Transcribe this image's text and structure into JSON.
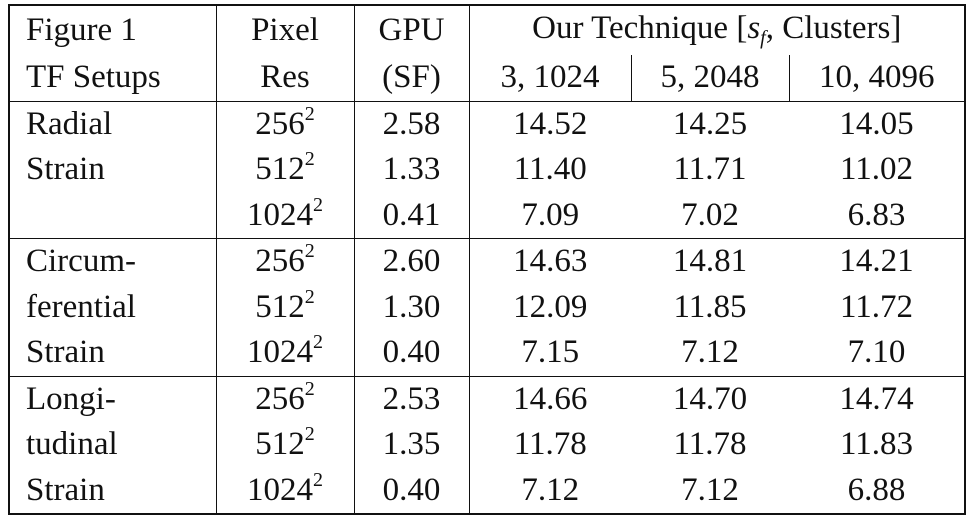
{
  "header": {
    "col1_line1": "Figure 1",
    "col1_line2": "TF Setups",
    "col2_line1": "Pixel",
    "col2_line2": "Res",
    "col3_line1": "GPU",
    "col3_line2": "(SF)",
    "col4_prefix": "Our Technique [",
    "col4_sym": "s",
    "col4_sub": "f",
    "col4_suffix": ", Clusters]",
    "sub1": "3, 1024",
    "sub2": "5, 2048",
    "sub3": "10, 4096"
  },
  "groups": [
    {
      "label_lines": [
        "Radial",
        "Strain",
        ""
      ],
      "rows": [
        {
          "res_base": "256",
          "res_exp": "2",
          "gpu": "2.58",
          "v1": "14.52",
          "v2": "14.25",
          "v3": "14.05"
        },
        {
          "res_base": "512",
          "res_exp": "2",
          "gpu": "1.33",
          "v1": "11.40",
          "v2": "11.71",
          "v3": "11.02"
        },
        {
          "res_base": "1024",
          "res_exp": "2",
          "gpu": "0.41",
          "v1": "7.09",
          "v2": "7.02",
          "v3": "6.83"
        }
      ]
    },
    {
      "label_lines": [
        "Circum-",
        "ferential",
        "Strain"
      ],
      "rows": [
        {
          "res_base": "256",
          "res_exp": "2",
          "gpu": "2.60",
          "v1": "14.63",
          "v2": "14.81",
          "v3": "14.21"
        },
        {
          "res_base": "512",
          "res_exp": "2",
          "gpu": "1.30",
          "v1": "12.09",
          "v2": "11.85",
          "v3": "11.72"
        },
        {
          "res_base": "1024",
          "res_exp": "2",
          "gpu": "0.40",
          "v1": "7.15",
          "v2": "7.12",
          "v3": "7.10"
        }
      ]
    },
    {
      "label_lines": [
        "Longi-",
        "tudinal",
        "Strain"
      ],
      "rows": [
        {
          "res_base": "256",
          "res_exp": "2",
          "gpu": "2.53",
          "v1": "14.66",
          "v2": "14.70",
          "v3": "14.74"
        },
        {
          "res_base": "512",
          "res_exp": "2",
          "gpu": "1.35",
          "v1": "11.78",
          "v2": "11.78",
          "v3": "11.83"
        },
        {
          "res_base": "1024",
          "res_exp": "2",
          "gpu": "0.40",
          "v1": "7.12",
          "v2": "7.12",
          "v3": "6.88"
        }
      ]
    }
  ]
}
